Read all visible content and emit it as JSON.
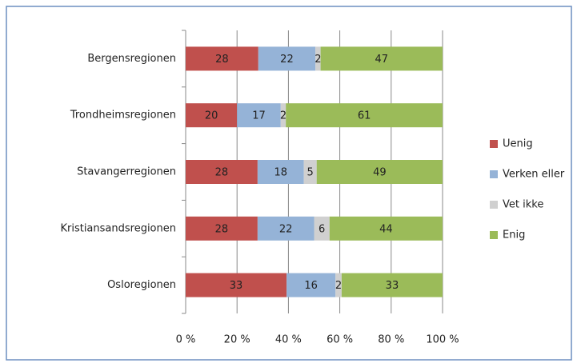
{
  "chart_data": {
    "type": "bar",
    "orientation": "horizontal",
    "stacking": "percent",
    "categories": [
      "Bergensregionen",
      "Trondheimsregionen",
      "Stavangerregionen",
      "Kristiansandsregionen",
      "Osloregionen"
    ],
    "series": [
      {
        "name": "Uenig",
        "color": "#c0504d",
        "values": [
          28,
          20,
          28,
          28,
          33
        ]
      },
      {
        "name": "Verken eller",
        "color": "#95b3d7",
        "values": [
          22,
          17,
          18,
          22,
          16
        ]
      },
      {
        "name": "Vet ikke",
        "color": "#d0d0d0",
        "values": [
          2,
          2,
          5,
          6,
          2
        ]
      },
      {
        "name": "Enig",
        "color": "#9bbb59",
        "values": [
          47,
          61,
          49,
          44,
          33
        ]
      }
    ],
    "xlim": [
      0,
      100
    ],
    "xticks": [
      {
        "value": 0,
        "label": "0 %"
      },
      {
        "value": 20,
        "label": "20 %"
      },
      {
        "value": 40,
        "label": "40 %"
      },
      {
        "value": 60,
        "label": "60 %"
      },
      {
        "value": 80,
        "label": "80 %"
      },
      {
        "value": 100,
        "label": "100 %"
      }
    ],
    "grid": true,
    "legend": "right"
  }
}
